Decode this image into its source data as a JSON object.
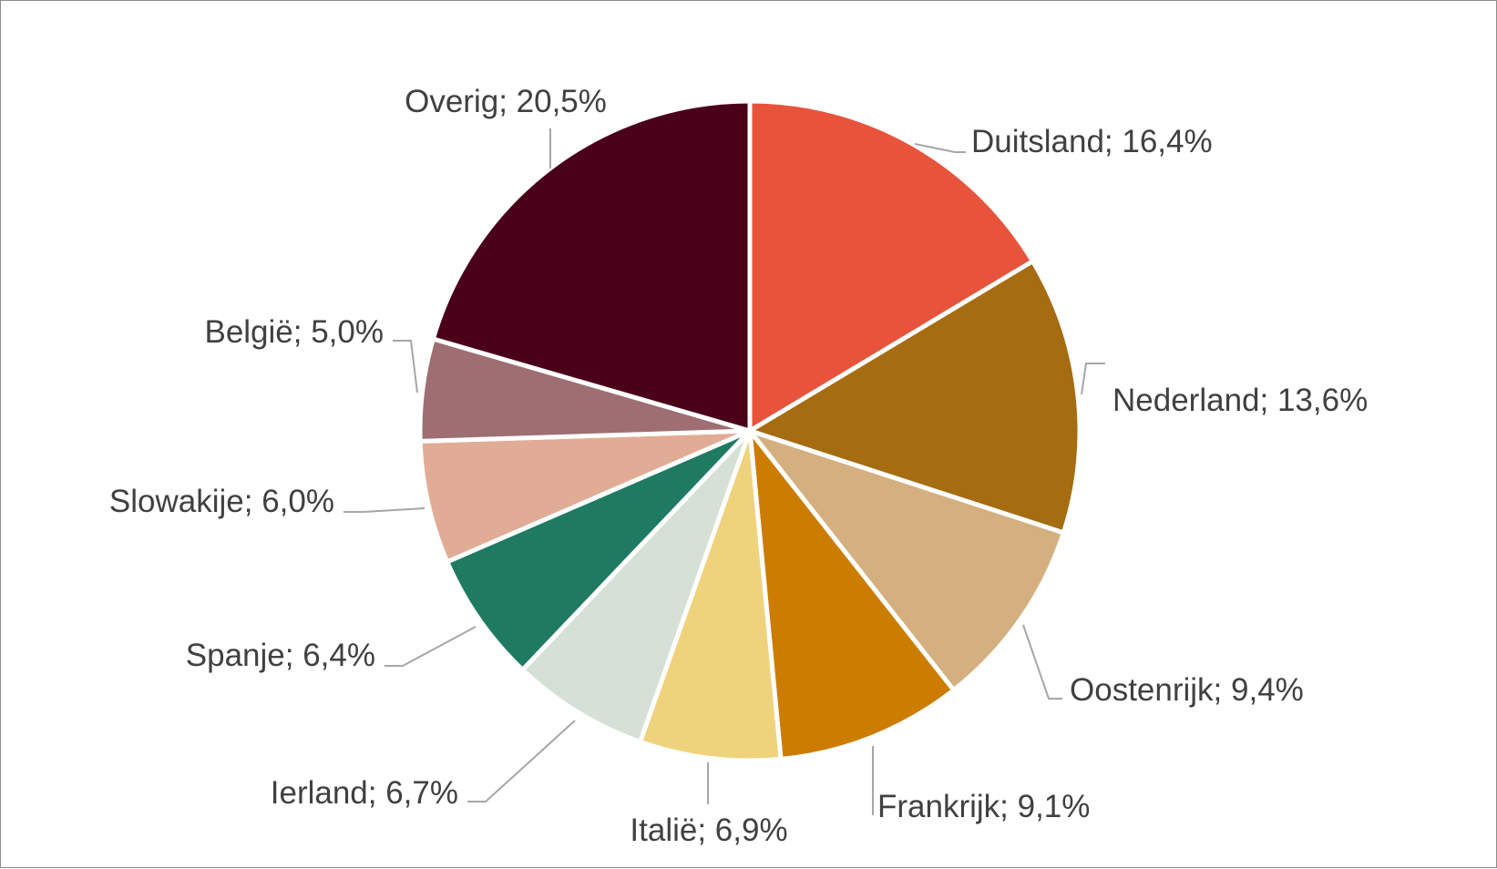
{
  "chart_data": {
    "type": "pie",
    "title": "",
    "categories": [
      "Duitsland",
      "Nederland",
      "Oostenrijk",
      "Frankrijk",
      "Italië",
      "Ierland",
      "Spanje",
      "Slowakije",
      "België",
      "Overig"
    ],
    "values": [
      16.4,
      13.6,
      9.4,
      9.1,
      6.9,
      6.7,
      6.4,
      6.0,
      5.0,
      20.5
    ],
    "labels": [
      "Duitsland; 16,4%",
      "Nederland; 13,6%",
      "Oostenrijk; 9,4%",
      "Frankrijk; 9,1%",
      "Italië; 6,9%",
      "Ierland; 6,7%",
      "Spanje; 6,4%",
      "Slowakije; 6,0%",
      "België; 5,0%",
      "Overig; 20,5%"
    ],
    "colors": [
      "#e8533c",
      "#a56c12",
      "#d4b080",
      "#cc7d00",
      "#efd27c",
      "#d5e1d6",
      "#1f7a62",
      "#e1ac95",
      "#9e6e72",
      "#4a0018"
    ],
    "start": "12 o'clock",
    "direction": "clockwise",
    "legend": "none",
    "data_labels": "outside with leader lines"
  }
}
